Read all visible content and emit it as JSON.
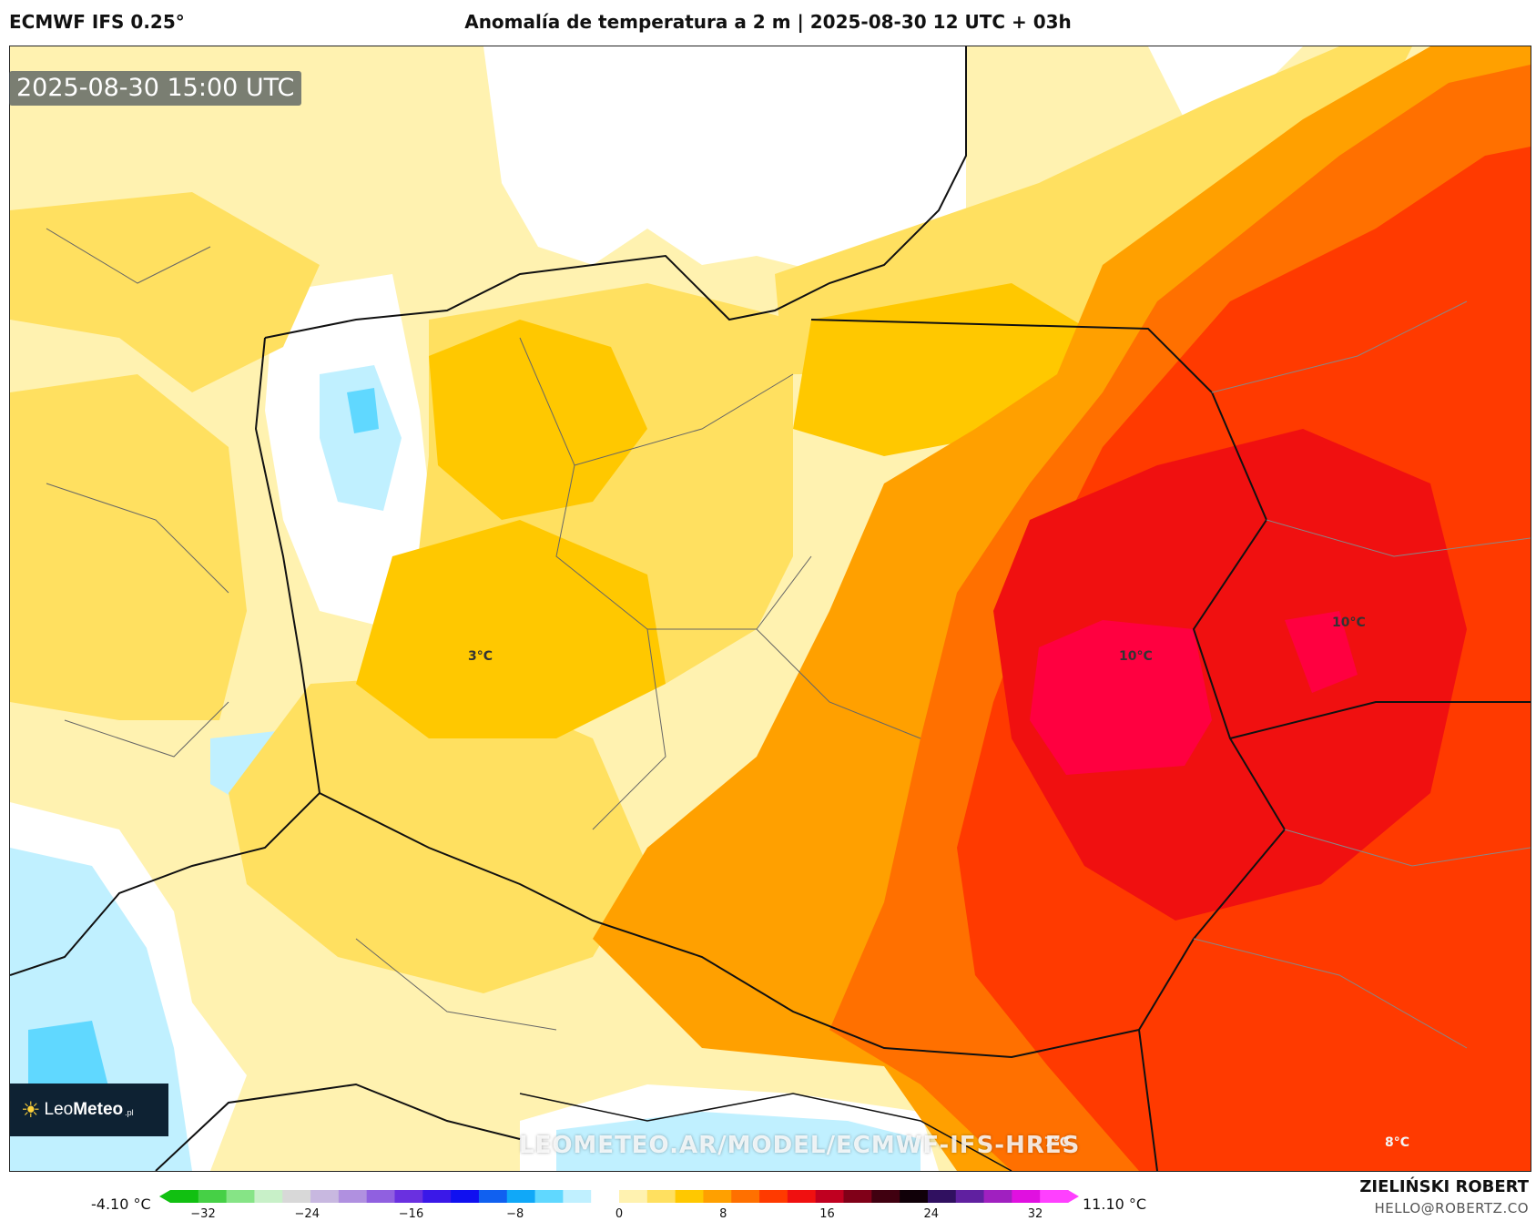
{
  "header": {
    "model": "ECMWF IFS 0.25°",
    "title": "Anomalía de temperatura a 2 m | 2025-08-30 12 UTC + 03h"
  },
  "map": {
    "timestamp": "2025-08-30 15:00 UTC",
    "watermark": "LEOMETEO.AR/MODEL/ECMWF-IFS-HRES",
    "labels": [
      "3°C",
      "10°C",
      "10°C",
      "7°C",
      "8°C"
    ]
  },
  "logo": {
    "name_light": "Leo",
    "name_bold": "Meteo",
    "suffix": ".pl"
  },
  "legend": {
    "min": "-4.10 °C",
    "max": "11.10 °C",
    "ticks": [
      "−32",
      "−24",
      "−16",
      "−8",
      "0",
      "8",
      "16",
      "24",
      "32"
    ],
    "colors": [
      "#11c011",
      "#46d046",
      "#86e486",
      "#c8f0c8",
      "#d8d8d8",
      "#c8b8e0",
      "#b090e0",
      "#9060e0",
      "#6a30e0",
      "#3a18e8",
      "#1010f0",
      "#1060f0",
      "#10a8f8",
      "#60d8ff",
      "#c0f0ff",
      "#ffffff",
      "#fff2b0",
      "#ffe060",
      "#ffc800",
      "#ffa000",
      "#ff7000",
      "#ff3a00",
      "#f01010",
      "#c00020",
      "#800018",
      "#400010",
      "#100008",
      "#301060",
      "#6020a0",
      "#a020c0",
      "#e010e0",
      "#ff40ff"
    ]
  },
  "credits": {
    "author": "ZIELIŃSKI ROBERT",
    "email": "HELLO@ROBERTZ.CO"
  }
}
